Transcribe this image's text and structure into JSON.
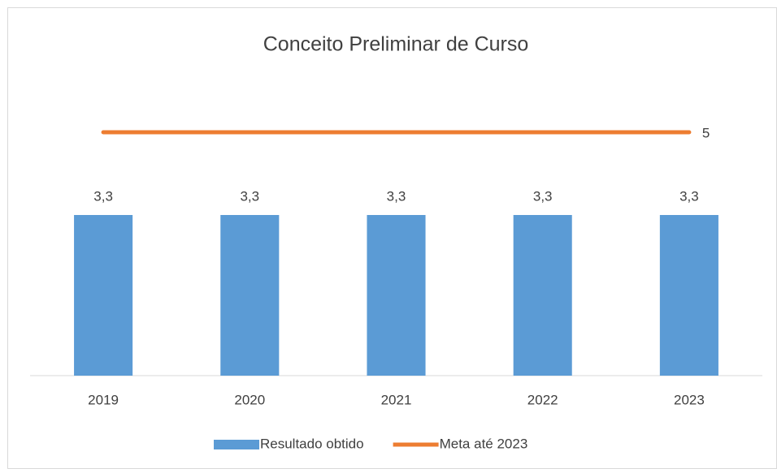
{
  "chart_data": {
    "type": "bar",
    "title": "Conceito Preliminar de Curso",
    "categories": [
      "2019",
      "2020",
      "2021",
      "2022",
      "2023"
    ],
    "series": [
      {
        "name": "Resultado obtido",
        "type": "bar",
        "color": "#5b9bd5",
        "values": [
          3.3,
          3.3,
          3.3,
          3.3,
          3.3
        ],
        "value_labels": [
          "3,3",
          "3,3",
          "3,3",
          "3,3",
          "3,3"
        ]
      },
      {
        "name": "Meta até 2023",
        "type": "line",
        "color": "#ed7d31",
        "values": [
          5,
          5,
          5,
          5,
          5
        ],
        "data_labels": "last"
      }
    ],
    "ylim": [
      0,
      6
    ],
    "grid": false,
    "legend": "bottom"
  }
}
